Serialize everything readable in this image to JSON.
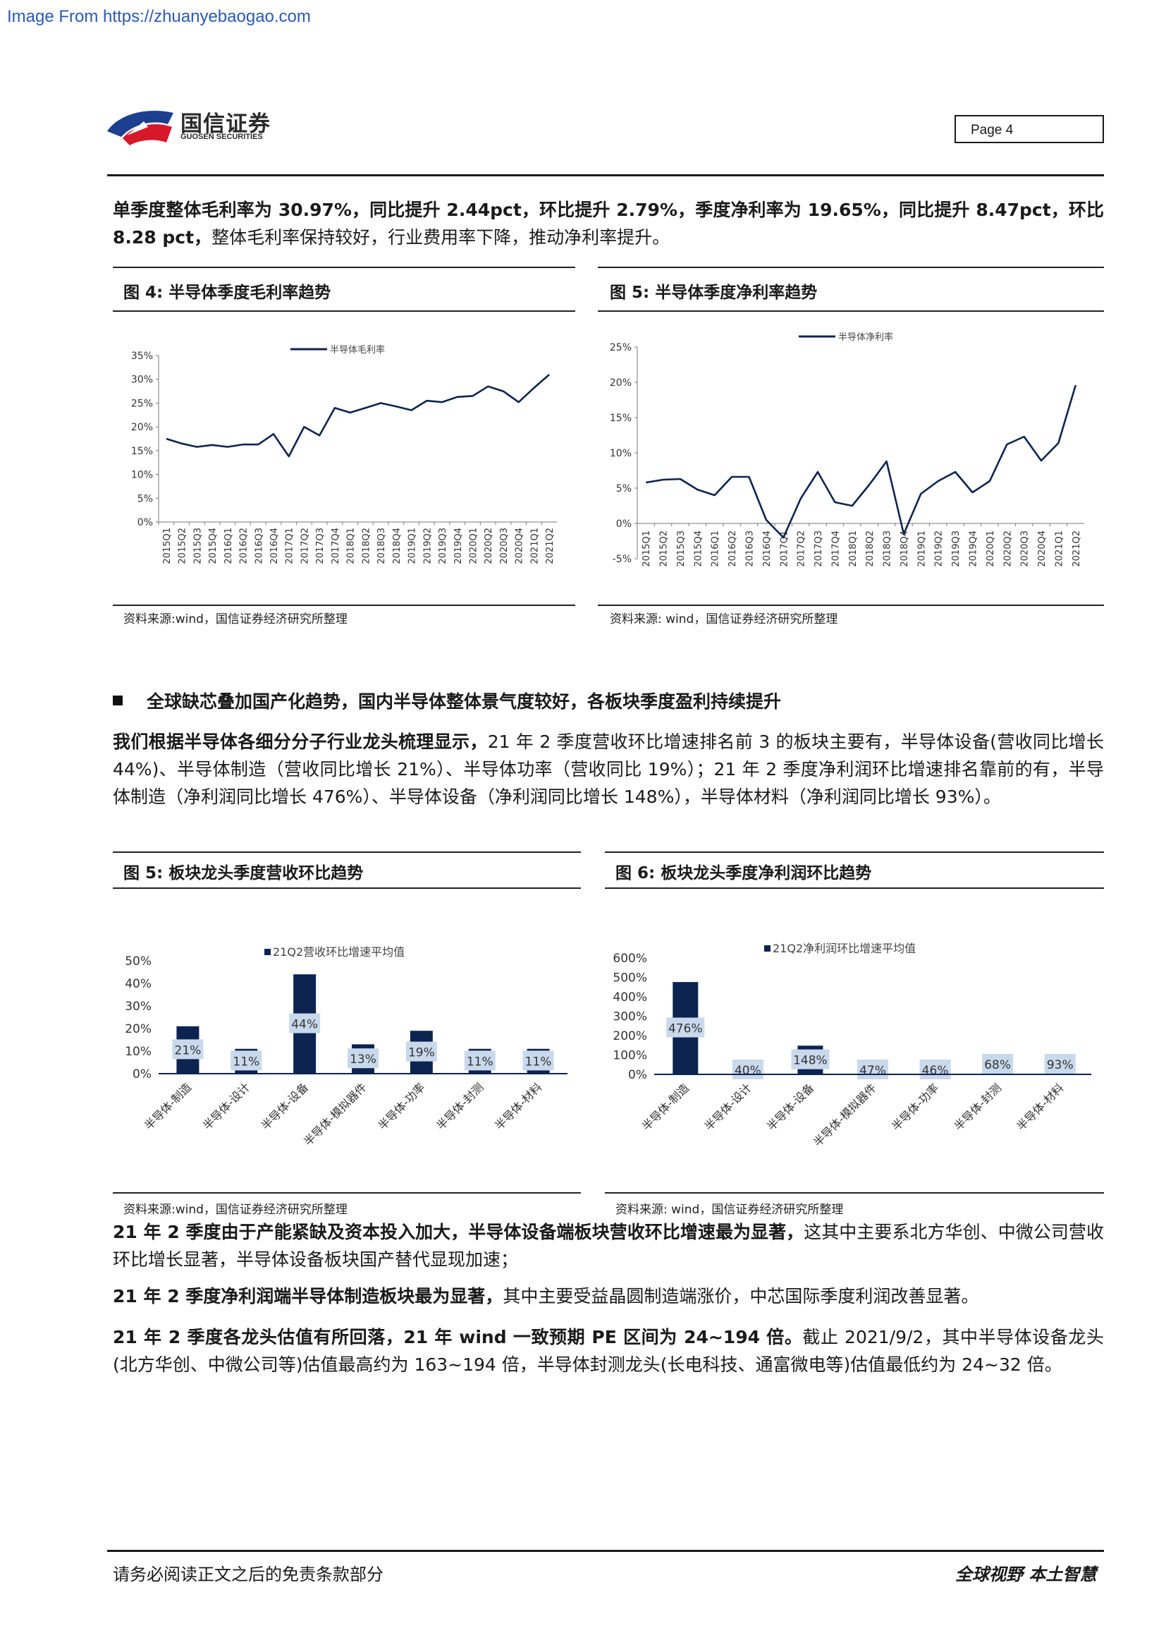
{
  "watermark": "Image From https://zhuanyebaogao.com",
  "header": {
    "brand_cn": "国信证券",
    "brand_en": "GUOSEN SECURITIES",
    "page_label": "Page  4"
  },
  "intro_paragraph": [
    {
      "t": "单季度整体毛利率为 30.97%，同比提升 2.44pct，环比提升 2.79%，季度净利率为 19.65%，同比提升 8.47pct，环比 8.28 pct，",
      "b": true
    },
    {
      "t": "整体毛利率保持较好，行业费用率下降，推动净利率提升。",
      "b": false
    }
  ],
  "fig4": {
    "title": "图 4:  半导体季度毛利率趋势",
    "source": "资料来源:wind，国信证券经济研究所整理"
  },
  "fig5a": {
    "title": "图 5:  半导体季度净利率趋势",
    "source": "资料来源: wind，国信证券经济研究所整理"
  },
  "section_heading": "全球缺芯叠加国产化趋势，国内半导体整体景气度较好，各板块季度盈利持续提升",
  "body_paragraph": [
    {
      "t": "我们根据半导体各细分分子行业龙头梳理显示，",
      "b": true
    },
    {
      "t": "21 年 2 季度营收环比增速排名前 3 的板块主要有，半导体设备(营收同比增长 44%)、半导体制造（营收同比增长 21%）、半导体功率（营收同比 19%）；21 年 2 季度净利润环比增速排名靠前的有，半导体制造（净利润同比增长 476%）、半导体设备（净利润同比增长 148%），半导体材料（净利润同比增长 93%）。",
      "b": false
    }
  ],
  "fig5b": {
    "title": "图 5:  板块龙头季度营收环比趋势",
    "source": "资料来源:wind，国信证券经济研究所整理"
  },
  "fig6": {
    "title": "图 6:  板块龙头季度净利润环比趋势",
    "source": "资料来源: wind，国信证券经济研究所整理"
  },
  "para_a": [
    {
      "t": "21 年 2 季度由于产能紧缺及资本投入加大，半导体设备端板块营收环比增速最为显著，",
      "b": true
    },
    {
      "t": "这其中主要系北方华创、中微公司营收环比增长显著，半导体设备板块国产替代显现加速；",
      "b": false
    }
  ],
  "para_b": [
    {
      "t": "21 年 2 季度净利润端半导体制造板块最为显著，",
      "b": true
    },
    {
      "t": "其中主要受益晶圆制造端涨价，中芯国际季度利润改善显著。",
      "b": false
    }
  ],
  "para_c": [
    {
      "t": "21 年 2 季度各龙头估值有所回落，21 年 wind 一致预期 PE 区间为 24~194 倍。",
      "b": true
    },
    {
      "t": "截止 2021/9/2，其中半导体设备龙头(北方华创、中微公司等)估值最高约为 163~194 倍，半导体封测龙头(长电科技、通富微电等)估值最低约为 24~32 倍。",
      "b": false
    }
  ],
  "footer": {
    "left": "请务必阅读正文之后的免责条款部分",
    "right": "全球视野  本土智慧"
  },
  "colors": {
    "navy": "#0d2451",
    "label_bg": "#c9d9ec"
  },
  "chart_data": [
    {
      "id": "gross_margin",
      "type": "line",
      "x": [
        "2015Q1",
        "2015Q2",
        "2015Q3",
        "2015Q4",
        "2016Q1",
        "2016Q2",
        "2016Q3",
        "2016Q4",
        "2017Q1",
        "2017Q2",
        "2017Q3",
        "2017Q4",
        "2018Q1",
        "2018Q2",
        "2018Q3",
        "2018Q4",
        "2019Q1",
        "2019Q2",
        "2019Q3",
        "2019Q4",
        "2020Q1",
        "2020Q2",
        "2020Q3",
        "2020Q4",
        "2021Q1",
        "2021Q2"
      ],
      "series": [
        {
          "name": "半导体毛利率",
          "values": [
            17.5,
            16.5,
            15.8,
            16.2,
            15.8,
            16.3,
            16.3,
            18.5,
            13.8,
            20.0,
            18.2,
            24.0,
            23.0,
            24.0,
            25.0,
            24.3,
            23.5,
            25.5,
            25.2,
            26.3,
            26.5,
            28.5,
            27.5,
            25.2,
            28.2,
            31.0
          ]
        }
      ],
      "yticks": [
        "0%",
        "5%",
        "10%",
        "15%",
        "20%",
        "25%",
        "30%",
        "35%"
      ],
      "ylim": [
        0,
        35
      ],
      "legend": "top"
    },
    {
      "id": "net_margin",
      "type": "line",
      "x": [
        "2015Q1",
        "2015Q2",
        "2015Q3",
        "2015Q4",
        "2016Q1",
        "2016Q2",
        "2016Q3",
        "2016Q4",
        "2017Q1",
        "2017Q2",
        "2017Q3",
        "2017Q4",
        "2018Q1",
        "2018Q2",
        "2018Q3",
        "2018Q4",
        "2019Q1",
        "2019Q2",
        "2019Q3",
        "2019Q4",
        "2020Q1",
        "2020Q2",
        "2020Q3",
        "2020Q4",
        "2021Q1",
        "2021Q2"
      ],
      "series": [
        {
          "name": "半导体净利率",
          "values": [
            5.8,
            6.2,
            6.3,
            4.8,
            4.0,
            6.6,
            6.6,
            0.5,
            -2.0,
            3.5,
            7.3,
            3.0,
            2.5,
            5.5,
            8.8,
            -1.5,
            4.2,
            6.0,
            7.3,
            4.4,
            6.0,
            11.2,
            12.3,
            8.9,
            11.4,
            19.6
          ]
        }
      ],
      "yticks": [
        "-5%",
        "0%",
        "5%",
        "10%",
        "15%",
        "20%",
        "25%"
      ],
      "ylim": [
        -5,
        25
      ],
      "legend": "top"
    },
    {
      "id": "revenue_qoq",
      "type": "bar",
      "categories": [
        "半导体-制造",
        "半导体-设计",
        "半导体-设备",
        "半导体-模拟器件",
        "半导体-功率",
        "半导体-封测",
        "半导体-材料"
      ],
      "series": [
        {
          "name": "21Q2营收环比增速平均值",
          "values": [
            21,
            11,
            44,
            13,
            19,
            11,
            11
          ]
        }
      ],
      "labels": [
        "21%",
        "11%",
        "44%",
        "13%",
        "19%",
        "11%",
        "11%"
      ],
      "yticks": [
        "0%",
        "10%",
        "20%",
        "30%",
        "40%",
        "50%"
      ],
      "ylim": [
        0,
        50
      ],
      "legend": "top"
    },
    {
      "id": "profit_qoq",
      "type": "bar",
      "categories": [
        "半导体-制造",
        "半导体-设计",
        "半导体-设备",
        "半导体-模拟器件",
        "半导体-功率",
        "半导体-封测",
        "半导体-材料"
      ],
      "series": [
        {
          "name": "21Q2净利润环比增速平均值",
          "values": [
            476,
            40,
            148,
            47,
            46,
            68,
            93
          ]
        }
      ],
      "labels": [
        "476%",
        "40%",
        "148%",
        "47%",
        "46%",
        "68%",
        "93%"
      ],
      "yticks": [
        "0%",
        "100%",
        "200%",
        "300%",
        "400%",
        "500%",
        "600%"
      ],
      "ylim": [
        0,
        600
      ],
      "legend": "top"
    }
  ]
}
